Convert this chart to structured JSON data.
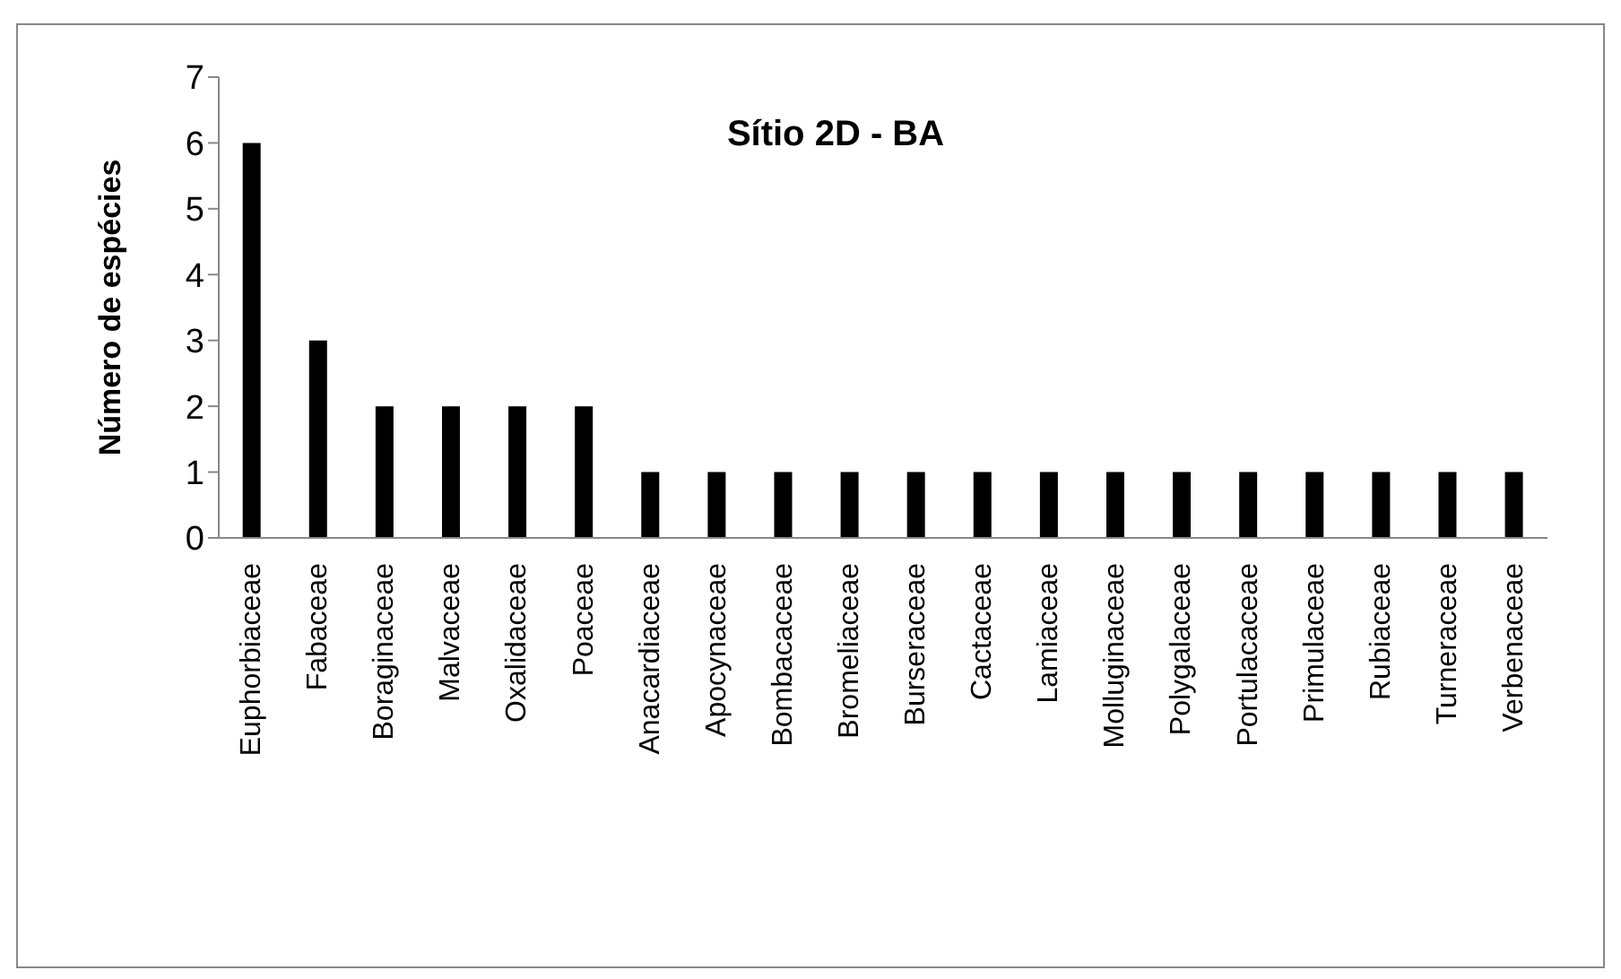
{
  "chart_data": {
    "type": "bar",
    "title": "Sítio 2D - BA",
    "ylabel": "Número de espécies",
    "categories": [
      "Euphorbiaceae",
      "Fabaceae",
      "Boraginaceae",
      "Malvaceae",
      "Oxalidaceae",
      "Poaceae",
      "Anacardiaceae",
      "Apocynaceae",
      "Bombacaceae",
      "Bromeliaceae",
      "Burseraceae",
      "Cactaceae",
      "Lamiaceae",
      "Molluginaceae",
      "Polygalaceae",
      "Portulacaceae",
      "Primulaceae",
      "Rubiaceae",
      "Turneraceae",
      "Verbenaceae"
    ],
    "values": [
      6,
      3,
      2,
      2,
      2,
      2,
      1,
      1,
      1,
      1,
      1,
      1,
      1,
      1,
      1,
      1,
      1,
      1,
      1,
      1
    ],
    "color": "#000000",
    "ylim": [
      0,
      7
    ],
    "yticks": [
      0,
      1,
      2,
      3,
      4,
      5,
      6,
      7
    ],
    "grid": false,
    "legend": false
  }
}
